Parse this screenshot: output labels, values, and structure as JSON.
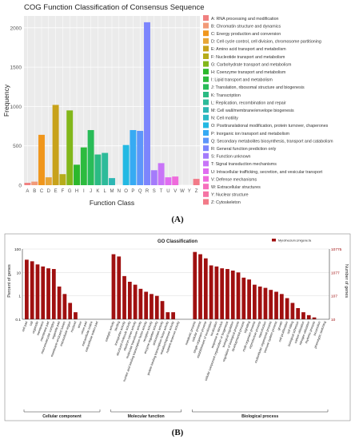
{
  "panel_labels": [
    "(A)",
    "(B)"
  ],
  "chart_data": [
    {
      "type": "bar",
      "title": "COG Function Classification of Consensus Sequence",
      "xlabel": "Function Class",
      "ylabel": "Frequency",
      "ylim": [
        0,
        2150
      ],
      "yticks": [
        "0",
        "500",
        "1000",
        "1500",
        "2000"
      ],
      "grid": true,
      "legend_position": "right",
      "categories": [
        "A",
        "B",
        "C",
        "D",
        "E",
        "F",
        "G",
        "H",
        "I",
        "J",
        "K",
        "L",
        "M",
        "N",
        "O",
        "P",
        "Q",
        "R",
        "S",
        "T",
        "U",
        "V",
        "W",
        "Y",
        "Z"
      ],
      "values": [
        30,
        45,
        640,
        100,
        1020,
        140,
        950,
        260,
        480,
        700,
        390,
        410,
        90,
        0,
        510,
        700,
        690,
        2070,
        190,
        280,
        100,
        110,
        0,
        0,
        80
      ],
      "colors": [
        "#f08080",
        "#f29a78",
        "#f0961c",
        "#e8a636",
        "#c8a21a",
        "#b6ac1a",
        "#82b71b",
        "#2cb82c",
        "#2dbb3e",
        "#29bc58",
        "#2bbb83",
        "#2dbb9a",
        "#2db7b4",
        "#2bb9c4",
        "#23b9e3",
        "#36aaf3",
        "#5d96fa",
        "#7c85fd",
        "#a47bfb",
        "#c874f8",
        "#e06cf1",
        "#ef6bdc",
        "#f66fbd",
        "#f574a4",
        "#f27a88"
      ],
      "legend": [
        "A: RNA processing and modification",
        "B: Chromatin structure and dynamics",
        "C: Energy production and conversion",
        "D: Cell cycle control, cell division, chromosome partitioning",
        "E: Amino acid transport and metabolism",
        "F: Nucleotide transport and metabolism",
        "G: Carbohydrate transport and metabolism",
        "H: Coenzyme transport and metabolism",
        "I: Lipid transport and metabolism",
        "J: Translation, ribosomal structure and biogenesis",
        "K: Transcription",
        "L: Replication, recombination and repair",
        "M: Cell wall/membrane/envelope biogenesis",
        "N: Cell motility",
        "O: Posttranslational modification, protein turnover, chaperones",
        "P: Inorganic ion transport and metabolism",
        "Q: Secondary metabolites biosynthesis, transport and catabolism",
        "R: General function prediction only",
        "S: Function unknown",
        "T: Signal transduction mechanisms",
        "U: Intracellular trafficking, secretion, and vesicular transport",
        "V: Defense mechanisms",
        "W: Extracellular structures",
        "Y: Nuclear structure",
        "Z: Cytoskeleton"
      ]
    },
    {
      "type": "bar",
      "title": "GO Classification",
      "ylabel_left": "Percent of genes",
      "ylabel_right": "Number of genes",
      "log_scale": true,
      "ylim": [
        0.1,
        100
      ],
      "yticks_left": [
        "100",
        "10",
        "1",
        "0.1"
      ],
      "yticks_right": [
        "10775",
        "1077",
        "107",
        "10"
      ],
      "legend_position": "top-right",
      "series": [
        {
          "name": "Myrothecium.Unigene.fa",
          "color": "#a01010"
        }
      ],
      "groups": [
        {
          "name": "Cellular component",
          "categories": [
            "cell part",
            "cell",
            "organelle",
            "membrane",
            "membrane part",
            "macromolecular complex",
            "organelle part",
            "membrane-enclosed lumen",
            "extracellular region",
            "nucleoid",
            "virion",
            "virion part",
            "extracellular matrix",
            "extracellular matrix part"
          ],
          "values": [
            35,
            30,
            22,
            18,
            15,
            14,
            2.5,
            1.2,
            0.5,
            0.2,
            0.1,
            0.1,
            0.1,
            0.1
          ]
        },
        {
          "name": "Molecular function",
          "categories": [
            "catalytic activity",
            "binding",
            "transporter activity",
            "structural molecule activity",
            "electron carrier activity",
            "molecular transducer activity",
            "nucleic acid binding transcription factor activity",
            "receptor activity",
            "enzyme regulator activity",
            "antioxidant activity",
            "protein binding transcription factor activity",
            "metallochaperone activity",
            "nutrient reservoir activity"
          ],
          "values": [
            60,
            48,
            7,
            4,
            3,
            2,
            1.5,
            1.2,
            1,
            0.6,
            0.2,
            0.2,
            0.1
          ]
        },
        {
          "name": "Biological process",
          "categories": [
            "metabolic process",
            "cellular process",
            "single-organism process",
            "establishment of localization",
            "localization",
            "response to stimulus",
            "cellular component organization or biogenesis",
            "biological regulation",
            "regulation of biological process",
            "developmental process",
            "signaling",
            "multi-organism process",
            "reproductive process",
            "reproduction",
            "multicellular organismal process",
            "immune system process",
            "growth",
            "cell proliferation",
            "cell killing",
            "biological adhesion",
            "carbon utilization",
            "nitrogen utilization",
            "rhythmic process",
            "locomotion",
            "phenotypic switching"
          ],
          "values": [
            75,
            60,
            40,
            20,
            18,
            15,
            14,
            12,
            10,
            6,
            5,
            3,
            2.5,
            2.2,
            1.8,
            1.5,
            1.2,
            0.8,
            0.5,
            0.3,
            0.2,
            0.15,
            0.12,
            0.1,
            0.1
          ]
        }
      ]
    }
  ]
}
